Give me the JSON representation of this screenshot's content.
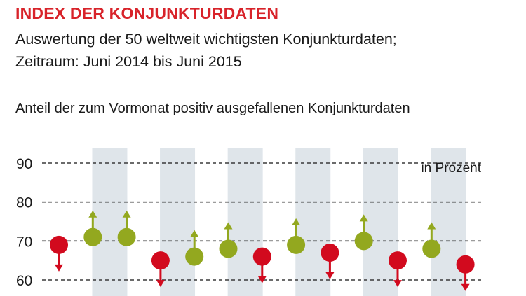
{
  "header": {
    "title": "INDEX DER KONJUNKTURDATEN",
    "subtitle_line1": "Auswertung der 50 weltweit wichtigsten Konjunkturdaten;",
    "subtitle_line2": "Zeitraum: Juni 2014 bis Juni 2015",
    "caption": "Anteil der zum Vormonat positiv ausgefallenen Konjunkturdaten"
  },
  "chart_data": {
    "type": "scatter",
    "unit_label": "in Prozent",
    "ylim": [
      57,
      93
    ],
    "yticks": [
      60,
      70,
      80,
      90
    ],
    "grid": "horizontal dashed",
    "points": [
      {
        "value": 69,
        "direction": "down"
      },
      {
        "value": 71,
        "direction": "up"
      },
      {
        "value": 71,
        "direction": "up"
      },
      {
        "value": 65,
        "direction": "down"
      },
      {
        "value": 66,
        "direction": "up"
      },
      {
        "value": 68,
        "direction": "up"
      },
      {
        "value": 66,
        "direction": "down"
      },
      {
        "value": 69,
        "direction": "up"
      },
      {
        "value": 67,
        "direction": "down"
      },
      {
        "value": 70,
        "direction": "up"
      },
      {
        "value": 65,
        "direction": "down"
      },
      {
        "value": 68,
        "direction": "up"
      },
      {
        "value": 64,
        "direction": "down"
      }
    ],
    "colors": {
      "up": "#93a81f",
      "down": "#d20a1e",
      "band": "#dfe5ea",
      "grid": "#3a3a3a"
    }
  }
}
